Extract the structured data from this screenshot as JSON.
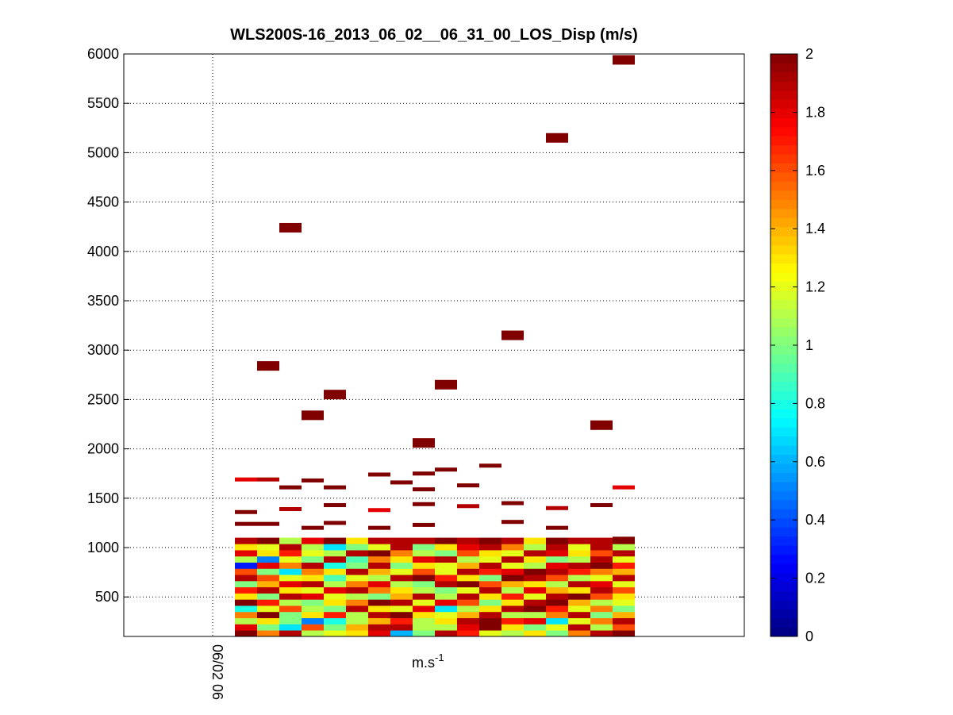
{
  "chart_data": {
    "type": "heatmap",
    "title": "WLS200S-16_2013_06_02__06_31_00_LOS_Disp (m/s)",
    "xlabel": "m.s",
    "xlabel_superscript": "-1",
    "ylabel": "",
    "ylim": [
      100,
      6000
    ],
    "yticks": [
      500,
      1000,
      1500,
      2000,
      2500,
      3000,
      3500,
      4000,
      4500,
      5000,
      5500,
      6000
    ],
    "xtick_label": "06/02 06",
    "grid": true,
    "colorbar": {
      "colormap": "jet",
      "range": [
        0,
        2
      ],
      "ticks": [
        "0",
        "0.2",
        "0.4",
        "0.6",
        "0.8",
        "1",
        "1.2",
        "1.4",
        "1.6",
        "1.8",
        "2"
      ]
    },
    "n_time_columns": 18,
    "dense_block": {
      "altitude_range": [
        100,
        1100
      ],
      "level": [
        [
          2.0,
          1.5,
          1.9,
          1.1,
          1.2,
          1.3,
          1.8,
          0.6,
          1.0,
          1.9,
          1.7,
          1.2,
          1.1,
          1.3,
          1.0,
          1.5,
          1.9,
          2.0
        ],
        [
          1.8,
          1.0,
          0.7,
          1.6,
          1.0,
          1.4,
          1.9,
          1.9,
          1.1,
          1.1,
          1.8,
          2.0,
          1.3,
          1.0,
          1.2,
          1.9,
          1.1,
          1.6
        ],
        [
          1.1,
          1.3,
          1.0,
          0.5,
          0.8,
          1.1,
          1.4,
          1.7,
          1.1,
          1.3,
          1.9,
          2.0,
          1.7,
          1.8,
          0.7,
          1.2,
          1.5,
          1.9
        ],
        [
          1.5,
          2.0,
          1.0,
          1.3,
          1.7,
          1.1,
          1.9,
          2.0,
          1.3,
          1.2,
          1.4,
          1.9,
          1.1,
          1.1,
          1.5,
          1.9,
          1.0,
          1.4
        ],
        [
          0.8,
          1.2,
          1.6,
          1.1,
          1.0,
          1.9,
          1.3,
          1.2,
          1.8,
          0.7,
          1.1,
          1.3,
          1.9,
          2.0,
          1.7,
          1.2,
          1.5,
          1.0
        ],
        [
          2.0,
          1.7,
          1.1,
          1.0,
          1.3,
          1.5,
          2.0,
          1.9,
          1.2,
          1.8,
          1.6,
          1.0,
          1.3,
          1.9,
          2.0,
          1.4,
          1.1,
          1.2
        ],
        [
          1.3,
          1.0,
          1.9,
          1.8,
          1.2,
          1.1,
          1.0,
          1.4,
          1.9,
          1.1,
          1.9,
          1.3,
          1.7,
          1.2,
          1.9,
          2.0,
          1.6,
          1.3
        ],
        [
          1.7,
          1.9,
          1.3,
          1.2,
          1.8,
          1.9,
          1.5,
          1.3,
          1.1,
          1.0,
          1.2,
          1.9,
          1.1,
          1.8,
          1.4,
          1.3,
          1.9,
          1.6
        ],
        [
          1.0,
          1.4,
          1.8,
          1.9,
          1.1,
          1.5,
          1.8,
          1.1,
          1.0,
          1.9,
          2.0,
          1.6,
          1.4,
          1.3,
          1.1,
          1.9,
          1.8,
          1.2
        ],
        [
          1.9,
          1.6,
          1.2,
          1.3,
          0.9,
          1.2,
          1.1,
          1.9,
          2.0,
          1.7,
          1.3,
          1.0,
          2.0,
          1.9,
          1.6,
          1.1,
          1.2,
          1.9
        ],
        [
          1.6,
          1.0,
          0.7,
          1.5,
          1.3,
          1.9,
          1.4,
          1.2,
          1.6,
          1.2,
          1.9,
          1.7,
          1.8,
          2.0,
          1.9,
          1.7,
          1.5,
          1.4
        ],
        [
          0.3,
          1.8,
          1.5,
          1.9,
          0.8,
          1.0,
          1.9,
          1.0,
          1.3,
          1.2,
          1.4,
          1.9,
          1.2,
          1.1,
          1.8,
          1.9,
          2.0,
          1.7
        ],
        [
          1.1,
          0.5,
          1.2,
          1.0,
          1.9,
          0.9,
          1.5,
          1.3,
          1.8,
          1.9,
          1.1,
          1.2,
          1.9,
          1.3,
          1.0,
          1.1,
          1.9,
          1.2
        ],
        [
          1.8,
          1.3,
          1.7,
          1.2,
          1.1,
          1.9,
          2.0,
          1.5,
          1.1,
          1.0,
          1.6,
          1.3,
          1.2,
          1.9,
          1.8,
          1.3,
          1.6,
          1.9
        ],
        [
          1.3,
          1.2,
          1.9,
          1.1,
          0.7,
          1.0,
          1.2,
          1.9,
          1.0,
          1.3,
          1.8,
          1.9,
          1.5,
          1.1,
          1.9,
          1.2,
          1.9,
          1.1
        ],
        [
          1.9,
          2.0,
          1.1,
          1.8,
          2.0,
          1.3,
          1.9,
          1.9,
          1.9,
          2.0,
          1.9,
          2.0,
          1.9,
          1.3,
          2.0,
          1.9,
          1.9,
          2.0
        ]
      ]
    },
    "scattered_cells": [
      {
        "col": 0,
        "alt": 1690,
        "v": 1.8
      },
      {
        "col": 1,
        "alt": 1690,
        "v": 1.9
      },
      {
        "col": 2,
        "alt": 1610,
        "v": 2.0
      },
      {
        "col": 3,
        "alt": 1680,
        "v": 2.0
      },
      {
        "col": 4,
        "alt": 1610,
        "v": 2.0
      },
      {
        "col": 6,
        "alt": 1740,
        "v": 2.0
      },
      {
        "col": 7,
        "alt": 1660,
        "v": 2.0
      },
      {
        "col": 8,
        "alt": 1590,
        "v": 2.0
      },
      {
        "col": 8,
        "alt": 1750,
        "v": 2.0
      },
      {
        "col": 9,
        "alt": 1790,
        "v": 2.0
      },
      {
        "col": 10,
        "alt": 1630,
        "v": 2.0
      },
      {
        "col": 11,
        "alt": 1830,
        "v": 2.0
      },
      {
        "col": 0,
        "alt": 1240,
        "v": 2.0
      },
      {
        "col": 1,
        "alt": 1240,
        "v": 2.0
      },
      {
        "col": 3,
        "alt": 1200,
        "v": 2.0
      },
      {
        "col": 4,
        "alt": 1250,
        "v": 2.0
      },
      {
        "col": 6,
        "alt": 1200,
        "v": 2.0
      },
      {
        "col": 8,
        "alt": 1230,
        "v": 2.0
      },
      {
        "col": 12,
        "alt": 1260,
        "v": 2.0
      },
      {
        "col": 14,
        "alt": 1200,
        "v": 2.0
      },
      {
        "col": 17,
        "alt": 1090,
        "v": 2.0
      },
      {
        "col": 0,
        "alt": 1360,
        "v": 2.0
      },
      {
        "col": 2,
        "alt": 1390,
        "v": 1.9
      },
      {
        "col": 4,
        "alt": 1430,
        "v": 2.0
      },
      {
        "col": 6,
        "alt": 1380,
        "v": 1.8
      },
      {
        "col": 8,
        "alt": 1440,
        "v": 2.0
      },
      {
        "col": 10,
        "alt": 1420,
        "v": 1.9
      },
      {
        "col": 12,
        "alt": 1450,
        "v": 2.0
      },
      {
        "col": 14,
        "alt": 1400,
        "v": 1.9
      },
      {
        "col": 16,
        "alt": 1430,
        "v": 2.0
      },
      {
        "col": 17,
        "alt": 1610,
        "v": 1.8
      },
      {
        "col": 1,
        "alt": 2840,
        "v": 2.0
      },
      {
        "col": 2,
        "alt": 4240,
        "v": 2.0
      },
      {
        "col": 3,
        "alt": 2340,
        "v": 2.0
      },
      {
        "col": 4,
        "alt": 2550,
        "v": 2.0
      },
      {
        "col": 8,
        "alt": 2060,
        "v": 2.0
      },
      {
        "col": 9,
        "alt": 2650,
        "v": 2.0
      },
      {
        "col": 12,
        "alt": 3150,
        "v": 2.0
      },
      {
        "col": 14,
        "alt": 5150,
        "v": 2.0
      },
      {
        "col": 16,
        "alt": 2240,
        "v": 2.0
      },
      {
        "col": 17,
        "alt": 5940,
        "v": 2.0
      }
    ]
  }
}
